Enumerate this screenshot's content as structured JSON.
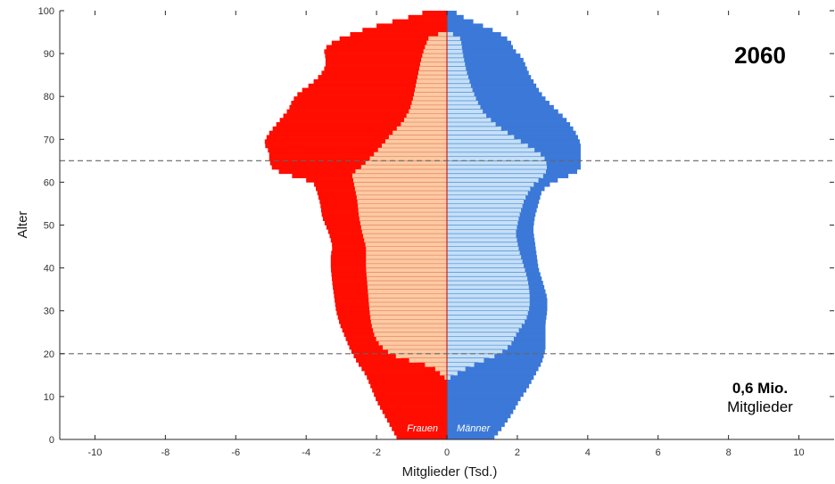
{
  "chart_data": {
    "type": "bar",
    "orientation": "horizontal",
    "title": "2060",
    "xlabel": "Mitglieder (Tsd.)",
    "ylabel": "Alter",
    "xlim": [
      -11,
      11
    ],
    "ylim": [
      0,
      100
    ],
    "xticks": [
      -10,
      -8,
      -6,
      -4,
      -2,
      0,
      2,
      4,
      6,
      8,
      10
    ],
    "yticks": [
      0,
      10,
      20,
      30,
      40,
      50,
      60,
      70,
      80,
      90,
      100
    ],
    "grid": false,
    "reference_lines_age": [
      20,
      65
    ],
    "side_labels": {
      "women": "Frauen",
      "men": "Männer"
    },
    "total": {
      "value": "0,6 Mio.",
      "label": "Mitglieder"
    },
    "colors": {
      "women_outer": "#ff0d00",
      "women_inner": "#fcc9a3",
      "men_outer": "#3b78d8",
      "men_inner": "#c5dff7",
      "divider": "#c8271b",
      "reference_line": "#666666"
    },
    "series": [
      {
        "key": "women_total",
        "anchors": [
          [
            0,
            1.4
          ],
          [
            3,
            1.6
          ],
          [
            6,
            1.8
          ],
          [
            9,
            2.0
          ],
          [
            12,
            2.15
          ],
          [
            15,
            2.3
          ],
          [
            18,
            2.55
          ],
          [
            21,
            2.75
          ],
          [
            24,
            2.9
          ],
          [
            27,
            3.05
          ],
          [
            30,
            3.15
          ],
          [
            33,
            3.2
          ],
          [
            36,
            3.25
          ],
          [
            40,
            3.3
          ],
          [
            43,
            3.3
          ],
          [
            45,
            3.25
          ],
          [
            48,
            3.35
          ],
          [
            50,
            3.45
          ],
          [
            52,
            3.55
          ],
          [
            55,
            3.6
          ],
          [
            58,
            3.7
          ],
          [
            60,
            3.8
          ],
          [
            61,
            4.2
          ],
          [
            62,
            4.6
          ],
          [
            63,
            4.95
          ],
          [
            65,
            5.05
          ],
          [
            67,
            5.05
          ],
          [
            69,
            5.2
          ],
          [
            71,
            5.1
          ],
          [
            73,
            4.9
          ],
          [
            75,
            4.7
          ],
          [
            77,
            4.5
          ],
          [
            79,
            4.4
          ],
          [
            81,
            4.2
          ],
          [
            83,
            3.85
          ],
          [
            85,
            3.6
          ],
          [
            87,
            3.45
          ],
          [
            89,
            3.45
          ],
          [
            91,
            3.5
          ],
          [
            93,
            3.2
          ],
          [
            94,
            2.9
          ],
          [
            95,
            2.6
          ],
          [
            96,
            2.2
          ],
          [
            97,
            1.8
          ],
          [
            98,
            1.3
          ],
          [
            99,
            0.9
          ],
          [
            100,
            0.5
          ]
        ]
      },
      {
        "key": "women_inner",
        "anchors": [
          [
            0,
            0.0
          ],
          [
            14,
            0.0
          ],
          [
            17,
            0.4
          ],
          [
            19,
            1.3
          ],
          [
            20,
            1.6
          ],
          [
            22,
            1.9
          ],
          [
            24,
            2.05
          ],
          [
            27,
            2.15
          ],
          [
            30,
            2.2
          ],
          [
            35,
            2.25
          ],
          [
            40,
            2.3
          ],
          [
            45,
            2.3
          ],
          [
            48,
            2.4
          ],
          [
            52,
            2.5
          ],
          [
            56,
            2.55
          ],
          [
            60,
            2.65
          ],
          [
            62,
            2.7
          ],
          [
            63,
            2.5
          ],
          [
            65,
            2.25
          ],
          [
            68,
            1.9
          ],
          [
            71,
            1.6
          ],
          [
            74,
            1.25
          ],
          [
            77,
            1.05
          ],
          [
            80,
            0.95
          ],
          [
            84,
            0.85
          ],
          [
            88,
            0.75
          ],
          [
            91,
            0.65
          ],
          [
            93,
            0.55
          ],
          [
            94,
            0.5
          ],
          [
            95,
            0.0
          ],
          [
            100,
            0.0
          ]
        ]
      },
      {
        "key": "men_total",
        "anchors": [
          [
            0,
            1.3
          ],
          [
            3,
            1.6
          ],
          [
            6,
            1.85
          ],
          [
            9,
            2.05
          ],
          [
            12,
            2.3
          ],
          [
            15,
            2.5
          ],
          [
            18,
            2.7
          ],
          [
            21,
            2.8
          ],
          [
            24,
            2.8
          ],
          [
            27,
            2.8
          ],
          [
            30,
            2.85
          ],
          [
            33,
            2.85
          ],
          [
            36,
            2.75
          ],
          [
            40,
            2.6
          ],
          [
            43,
            2.55
          ],
          [
            46,
            2.5
          ],
          [
            49,
            2.45
          ],
          [
            52,
            2.5
          ],
          [
            55,
            2.6
          ],
          [
            58,
            2.7
          ],
          [
            60,
            3.0
          ],
          [
            61,
            3.3
          ],
          [
            62,
            3.6
          ],
          [
            63,
            3.8
          ],
          [
            65,
            3.8
          ],
          [
            67,
            3.8
          ],
          [
            69,
            3.8
          ],
          [
            71,
            3.7
          ],
          [
            73,
            3.55
          ],
          [
            75,
            3.35
          ],
          [
            77,
            3.1
          ],
          [
            79,
            2.85
          ],
          [
            81,
            2.65
          ],
          [
            83,
            2.5
          ],
          [
            85,
            2.35
          ],
          [
            87,
            2.25
          ],
          [
            89,
            2.15
          ],
          [
            91,
            1.9
          ],
          [
            93,
            1.8
          ],
          [
            95,
            1.45
          ],
          [
            96,
            1.15
          ],
          [
            97,
            0.9
          ],
          [
            98,
            0.6
          ],
          [
            99,
            0.35
          ],
          [
            100,
            0.2
          ]
        ]
      },
      {
        "key": "men_inner",
        "anchors": [
          [
            0,
            0.0
          ],
          [
            14,
            0.0
          ],
          [
            16,
            0.4
          ],
          [
            18,
            0.9
          ],
          [
            20,
            1.5
          ],
          [
            22,
            1.8
          ],
          [
            25,
            2.0
          ],
          [
            28,
            2.25
          ],
          [
            31,
            2.35
          ],
          [
            34,
            2.35
          ],
          [
            37,
            2.3
          ],
          [
            40,
            2.2
          ],
          [
            44,
            2.05
          ],
          [
            48,
            1.95
          ],
          [
            52,
            2.05
          ],
          [
            56,
            2.2
          ],
          [
            59,
            2.4
          ],
          [
            62,
            2.8
          ],
          [
            64,
            2.85
          ],
          [
            66,
            2.75
          ],
          [
            68,
            2.4
          ],
          [
            70,
            2.0
          ],
          [
            73,
            1.45
          ],
          [
            76,
            1.05
          ],
          [
            79,
            0.85
          ],
          [
            82,
            0.7
          ],
          [
            86,
            0.55
          ],
          [
            90,
            0.45
          ],
          [
            93,
            0.4
          ],
          [
            94,
            0.35
          ],
          [
            95,
            0.0
          ],
          [
            100,
            0.0
          ]
        ]
      }
    ]
  }
}
